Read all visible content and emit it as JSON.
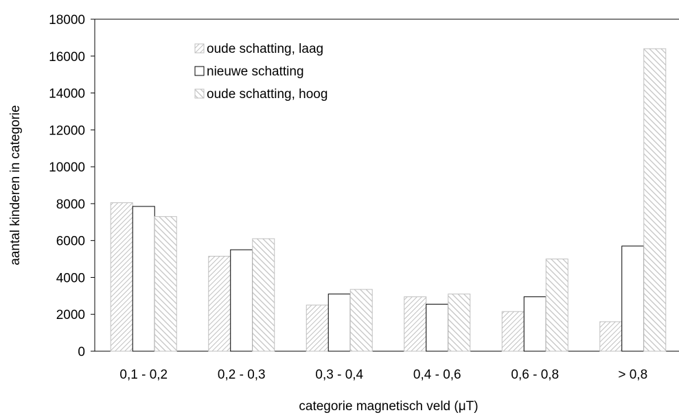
{
  "chart_data": {
    "type": "bar",
    "categories": [
      "0,1 - 0,2",
      "0,2 - 0,3",
      "0,3 - 0,4",
      "0,4 - 0,6",
      "0,6 - 0,8",
      "> 0,8"
    ],
    "series": [
      {
        "name": "oude schatting, laag",
        "pattern": "fine-diagonal-hatch",
        "color": "#bfbfbf",
        "values": [
          8050,
          5150,
          2500,
          2950,
          2150,
          1600
        ]
      },
      {
        "name": "nieuwe schatting",
        "pattern": "solid",
        "color": "#ffffff",
        "values": [
          7850,
          5500,
          3100,
          2550,
          2950,
          5700
        ]
      },
      {
        "name": "oude schatting, hoog",
        "pattern": "coarse-diagonal-hatch",
        "color": "#bfbfbf",
        "values": [
          7300,
          6100,
          3350,
          3100,
          5000,
          16400
        ]
      }
    ],
    "xlabel": "categorie magnetisch veld (μT)",
    "ylabel": "aantal kinderen in categorie",
    "ylim": [
      0,
      18000
    ],
    "yticks": [
      0,
      2000,
      4000,
      6000,
      8000,
      10000,
      12000,
      14000,
      16000,
      18000
    ],
    "grid": false,
    "legend_position": "top-left"
  }
}
